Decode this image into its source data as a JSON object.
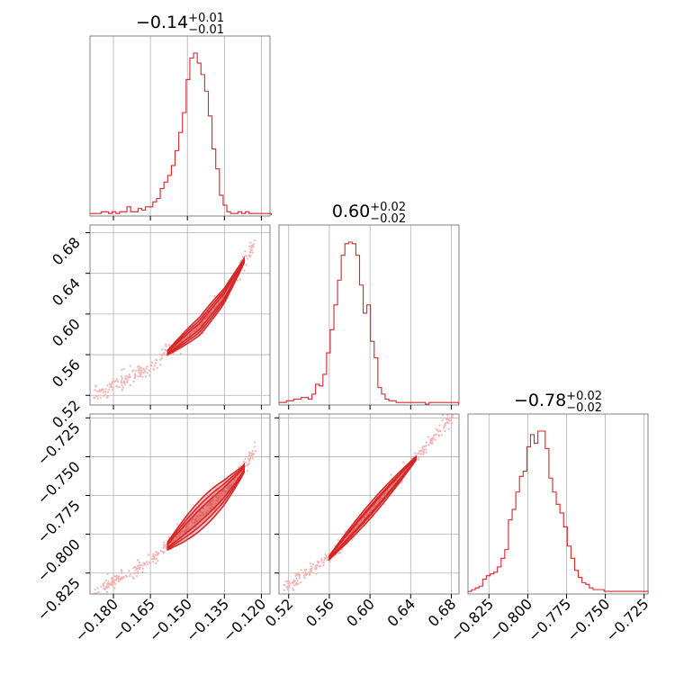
{
  "chart_data": {
    "type": "corner",
    "color": "#d62728",
    "parameters": [
      {
        "title_value": "−0.14",
        "title_plus": "+0.01",
        "title_minus": "−0.01",
        "median": -0.14,
        "sigma": 0.01,
        "range": [
          -0.1895,
          -0.1165
        ],
        "ticks": [
          -0.18,
          -0.165,
          -0.15,
          -0.135,
          -0.12
        ],
        "tick_labels": [
          "−0.180",
          "−0.165",
          "−0.150",
          "−0.135",
          "−0.120"
        ],
        "histogram": {
          "bin_start": -0.1895,
          "bin_width": 0.0015,
          "counts": [
            1,
            1,
            1,
            2,
            2,
            1,
            2,
            1,
            2,
            2,
            5,
            2,
            2,
            4,
            3,
            5,
            5,
            8,
            10,
            16,
            20,
            24,
            30,
            39,
            50,
            62,
            82,
            95,
            98,
            92,
            85,
            75,
            60,
            40,
            28,
            12,
            6,
            2,
            1,
            1,
            2,
            1,
            2,
            1,
            1,
            1,
            1,
            1,
            1
          ]
        }
      },
      {
        "title_value": "0.60",
        "title_plus": "+0.02",
        "title_minus": "−0.02",
        "median": 0.6,
        "sigma": 0.02,
        "range": [
          0.5105,
          0.6875
        ],
        "ticks": [
          0.52,
          0.56,
          0.6,
          0.64,
          0.68
        ],
        "tick_labels": [
          "0.52",
          "0.56",
          "0.60",
          "0.64",
          "0.68"
        ],
        "histogram": {
          "bin_start": 0.5105,
          "bin_width": 0.0036,
          "counts": [
            1,
            1,
            2,
            2,
            3,
            3,
            4,
            4,
            3,
            6,
            12,
            11,
            18,
            31,
            45,
            60,
            75,
            90,
            97,
            98,
            97,
            90,
            72,
            55,
            60,
            38,
            28,
            10,
            6,
            3,
            2,
            2,
            1,
            1,
            1,
            1,
            1,
            1,
            1,
            1,
            0,
            1,
            1,
            1,
            1,
            1,
            1,
            1,
            1
          ]
        }
      },
      {
        "title_value": "−0.78",
        "title_plus": "+0.02",
        "title_minus": "−0.02",
        "median": -0.78,
        "sigma": 0.02,
        "range": [
          -0.8385,
          -0.7225
        ],
        "ticks": [
          -0.825,
          -0.8,
          -0.775,
          -0.75,
          -0.725
        ],
        "tick_labels": [
          "−0.825",
          "−0.800",
          "−0.775",
          "−0.750",
          "−0.725"
        ],
        "histogram": {
          "bin_start": -0.8385,
          "bin_width": 0.00237,
          "counts": [
            1,
            2,
            3,
            4,
            8,
            10,
            11,
            12,
            15,
            20,
            25,
            42,
            48,
            58,
            67,
            70,
            84,
            91,
            86,
            93,
            93,
            83,
            66,
            58,
            51,
            46,
            38,
            27,
            20,
            13,
            9,
            6,
            5,
            3,
            2,
            2,
            2,
            1,
            1,
            1,
            1,
            1,
            1,
            1,
            1,
            1,
            1,
            1,
            1
          ]
        }
      }
    ],
    "pairs": [
      {
        "x_param": 0,
        "y_param": 1,
        "curve": [
          [
            -0.188,
            0.52
          ],
          [
            -0.175,
            0.535
          ],
          [
            -0.165,
            0.548
          ],
          [
            -0.155,
            0.568
          ],
          [
            -0.145,
            0.588
          ],
          [
            -0.135,
            0.618
          ],
          [
            -0.128,
            0.648
          ],
          [
            -0.122,
            0.675
          ]
        ],
        "contour_widths": [
          0.003,
          0.006,
          0.009
        ],
        "contour_span": [
          -0.158,
          -0.127
        ]
      },
      {
        "x_param": 0,
        "y_param": 2,
        "curve": [
          [
            -0.188,
            -0.837
          ],
          [
            -0.175,
            -0.826
          ],
          [
            -0.165,
            -0.818
          ],
          [
            -0.155,
            -0.803
          ],
          [
            -0.145,
            -0.788
          ],
          [
            -0.135,
            -0.773
          ],
          [
            -0.128,
            -0.76
          ],
          [
            -0.122,
            -0.745
          ]
        ],
        "contour_widths": [
          0.004,
          0.007,
          0.01
        ],
        "contour_span": [
          -0.158,
          -0.127
        ]
      },
      {
        "x_param": 1,
        "y_param": 2,
        "curve": [
          [
            0.515,
            -0.835
          ],
          [
            0.56,
            -0.815
          ],
          [
            0.6,
            -0.785
          ],
          [
            0.64,
            -0.755
          ],
          [
            0.685,
            -0.72
          ]
        ],
        "contour_widths": [
          0.002,
          0.003,
          0.005
        ],
        "contour_span": [
          0.56,
          0.645
        ]
      }
    ]
  }
}
